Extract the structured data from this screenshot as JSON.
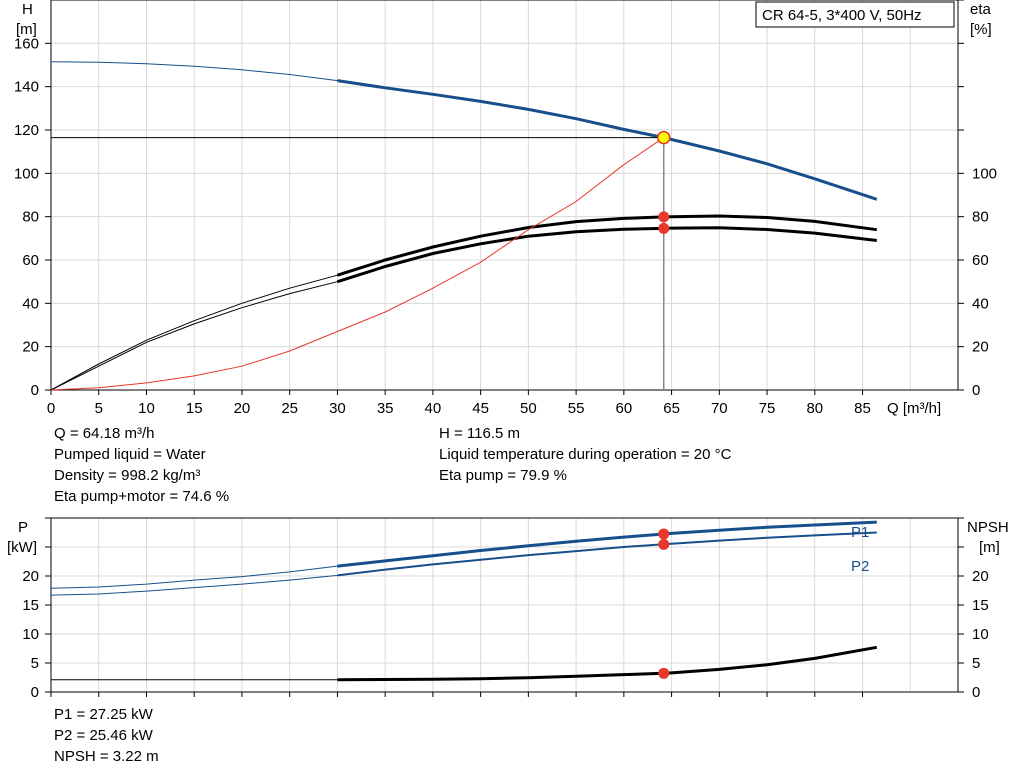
{
  "chart_data": [
    {
      "type": "line",
      "title": "CR 64-5, 3*400 V, 50Hz",
      "xlabel": "Q [m³/h]",
      "ylabel_left_line1": "H",
      "ylabel_left_line2": "[m]",
      "ylabel_right_line1": "eta",
      "ylabel_right_line2": "[%]",
      "xlim": [
        0,
        95
      ],
      "ylim": [
        0,
        180
      ],
      "x_ticks": [
        0,
        5,
        10,
        15,
        20,
        25,
        30,
        35,
        40,
        45,
        50,
        55,
        60,
        65,
        70,
        75,
        80,
        85
      ],
      "y_ticks_left": [
        0,
        20,
        40,
        60,
        80,
        100,
        120,
        140,
        160
      ],
      "y_ticks_right": [
        0,
        20,
        40,
        60,
        80,
        100
      ],
      "grid": true,
      "series": [
        {
          "id": "head",
          "color": "#174f8c",
          "x": [
            0,
            5,
            10,
            15,
            20,
            25,
            30,
            35,
            40,
            45,
            50,
            55,
            60,
            64.18,
            65,
            70,
            75,
            80,
            86.5
          ],
          "y": [
            151.5,
            151.3,
            150.6,
            149.4,
            147.8,
            145.6,
            142.8,
            139.5,
            136.5,
            133.2,
            129.5,
            125.2,
            120.3,
            116.5,
            115.6,
            110.3,
            104.4,
            97.5,
            88.0
          ]
        },
        {
          "id": "eta_pump",
          "color": "#000000",
          "x": [
            0,
            5,
            10,
            15,
            20,
            25,
            30,
            35,
            40,
            45,
            50,
            55,
            60,
            64.18,
            65,
            70,
            75,
            80,
            86.5
          ],
          "y": [
            0,
            12,
            23,
            32,
            40,
            47,
            53,
            60,
            66,
            71,
            75,
            77.7,
            79.2,
            79.9,
            80,
            80.3,
            79.6,
            77.8,
            74
          ]
        },
        {
          "id": "eta_total",
          "color": "#000000",
          "x": [
            0,
            5,
            10,
            15,
            20,
            25,
            30,
            35,
            40,
            45,
            50,
            55,
            60,
            64.18,
            65,
            70,
            75,
            80,
            86.5
          ],
          "y": [
            0,
            11,
            22,
            30.5,
            38,
            44.5,
            50,
            57,
            63,
            67.5,
            71,
            73,
            74.2,
            74.6,
            74.7,
            74.9,
            74.1,
            72.4,
            69
          ]
        },
        {
          "id": "system",
          "color": "#e8372b",
          "x": [
            0,
            5,
            10,
            15,
            20,
            25,
            30,
            35,
            40,
            45,
            50,
            55,
            60,
            64.18
          ],
          "y": [
            0,
            1,
            3.3,
            6.5,
            11,
            18,
            27,
            36,
            47,
            59,
            74,
            87,
            104,
            116.5
          ]
        }
      ],
      "operating_point": {
        "x": 64.18,
        "H": 116.5,
        "eta_pump": 79.9,
        "eta_total": 74.6
      }
    },
    {
      "type": "line",
      "ylabel_left_line1": "P",
      "ylabel_left_line2": "[kW]",
      "ylabel_right_line1": "NPSH",
      "ylabel_right_line2": "[m]",
      "xlim": [
        0,
        95
      ],
      "ylim": [
        0,
        30
      ],
      "y_ticks_left": [
        0,
        5,
        10,
        15,
        20
      ],
      "y_ticks_right": [
        0,
        5,
        10,
        15,
        20
      ],
      "grid": true,
      "series": [
        {
          "id": "P1",
          "name": "P1",
          "color": "#174f8c",
          "x": [
            0,
            5,
            10,
            15,
            20,
            25,
            30,
            35,
            40,
            45,
            50,
            55,
            60,
            64.18,
            65,
            70,
            75,
            80,
            86.5
          ],
          "y": [
            17.9,
            18.1,
            18.6,
            19.3,
            19.9,
            20.7,
            21.7,
            22.6,
            23.5,
            24.4,
            25.2,
            26.0,
            26.7,
            27.25,
            27.35,
            27.9,
            28.4,
            28.8,
            29.3
          ]
        },
        {
          "id": "P2",
          "name": "P2",
          "color": "#174f8c",
          "x": [
            0,
            5,
            10,
            15,
            20,
            25,
            30,
            35,
            40,
            45,
            50,
            55,
            60,
            64.18,
            65,
            70,
            75,
            80,
            86.5
          ],
          "y": [
            16.7,
            16.9,
            17.4,
            18.0,
            18.6,
            19.3,
            20.1,
            21.1,
            22.0,
            22.8,
            23.6,
            24.3,
            25.0,
            25.46,
            25.55,
            26.1,
            26.6,
            27.0,
            27.5
          ]
        },
        {
          "id": "NPSH",
          "color": "#000000",
          "x": [
            0,
            30,
            35,
            40,
            45,
            50,
            55,
            60,
            64.18,
            65,
            70,
            75,
            80,
            86.5
          ],
          "y": [
            2.1,
            2.1,
            2.15,
            2.2,
            2.3,
            2.45,
            2.7,
            3.0,
            3.22,
            3.3,
            3.9,
            4.7,
            5.8,
            7.7
          ]
        }
      ],
      "operating_point": {
        "x": 64.18,
        "P1": 27.25,
        "P2": 25.46,
        "NPSH": 3.22
      }
    }
  ],
  "info_top_left": [
    "Q = 64.18 m³/h",
    "Pumped liquid = Water",
    "Density = 998.2 kg/m³",
    "Eta pump+motor = 74.6 %"
  ],
  "info_top_right": [
    "H = 116.5 m",
    "Liquid temperature during operation = 20 °C",
    "Eta pump = 79.9 %"
  ],
  "info_bottom": [
    "P1 = 27.25 kW",
    "P2 = 25.46 kW",
    "NPSH = 3.22 m"
  ],
  "colors": {
    "blue": "#174f8c",
    "red": "#e8372b",
    "grid": "#d8d8d8",
    "marker_yellow": "#ffff00"
  }
}
